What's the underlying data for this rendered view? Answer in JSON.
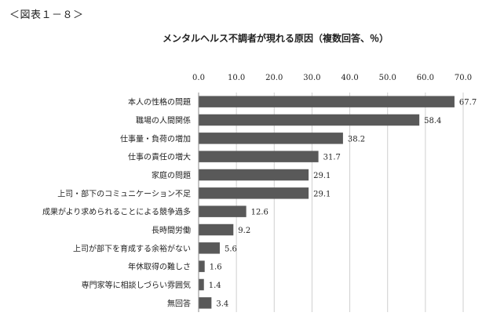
{
  "figure_label": "＜図表１－８＞",
  "chart_data": {
    "type": "bar",
    "orientation": "horizontal",
    "title": "メンタルヘルス不調者が現れる原因（複数回答、％）",
    "xlim": [
      0,
      70
    ],
    "ticks": [
      "0.0",
      "10.0",
      "20.0",
      "30.0",
      "40.0",
      "50.0",
      "60.0",
      "70.0"
    ],
    "tick_values": [
      0,
      10,
      20,
      30,
      40,
      50,
      60,
      70
    ],
    "grid": true,
    "bar_color": "#595959",
    "categories": [
      "本人の性格の問題",
      "職場の人間関係",
      "仕事量・負荷の増加",
      "仕事の責任の増大",
      "家庭の問題",
      "上司・部下のコミュニケーション不足",
      "成果がより求められることによる競争過多",
      "長時間労働",
      "上司が部下を育成する余裕がない",
      "年休取得の難しさ",
      "専門家等に相談しづらい雰囲気",
      "無回答"
    ],
    "values": [
      67.7,
      58.4,
      38.2,
      31.7,
      29.1,
      29.1,
      12.6,
      9.2,
      5.6,
      1.6,
      1.4,
      3.4
    ],
    "value_labels": [
      "67.7",
      "58.4",
      "38.2",
      "31.7",
      "29.1",
      "29.1",
      "12.6",
      "9.2",
      "5.6",
      "1.6",
      "1.4",
      "3.4"
    ]
  }
}
